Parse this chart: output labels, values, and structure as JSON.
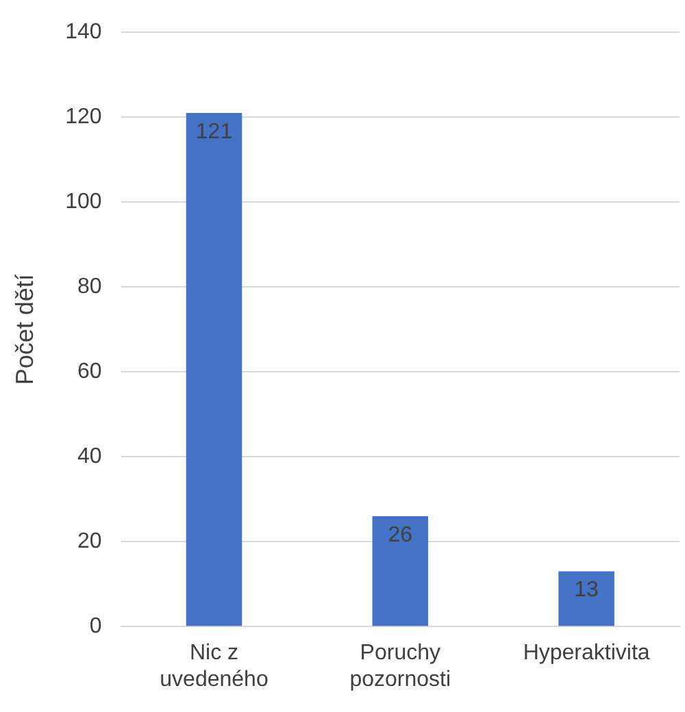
{
  "chart_data": {
    "type": "bar",
    "ylabel": "Počet dětí",
    "categories": [
      "Nic z uvedeného",
      "Poruchy pozornosti",
      "Hyperaktivita"
    ],
    "values": [
      121,
      26,
      13
    ],
    "color": "#4472c4",
    "ylim": [
      0,
      140
    ],
    "yticks": [
      0,
      20,
      40,
      60,
      80,
      100,
      120,
      140
    ],
    "grid": "y",
    "data_labels": true,
    "legend": false
  }
}
